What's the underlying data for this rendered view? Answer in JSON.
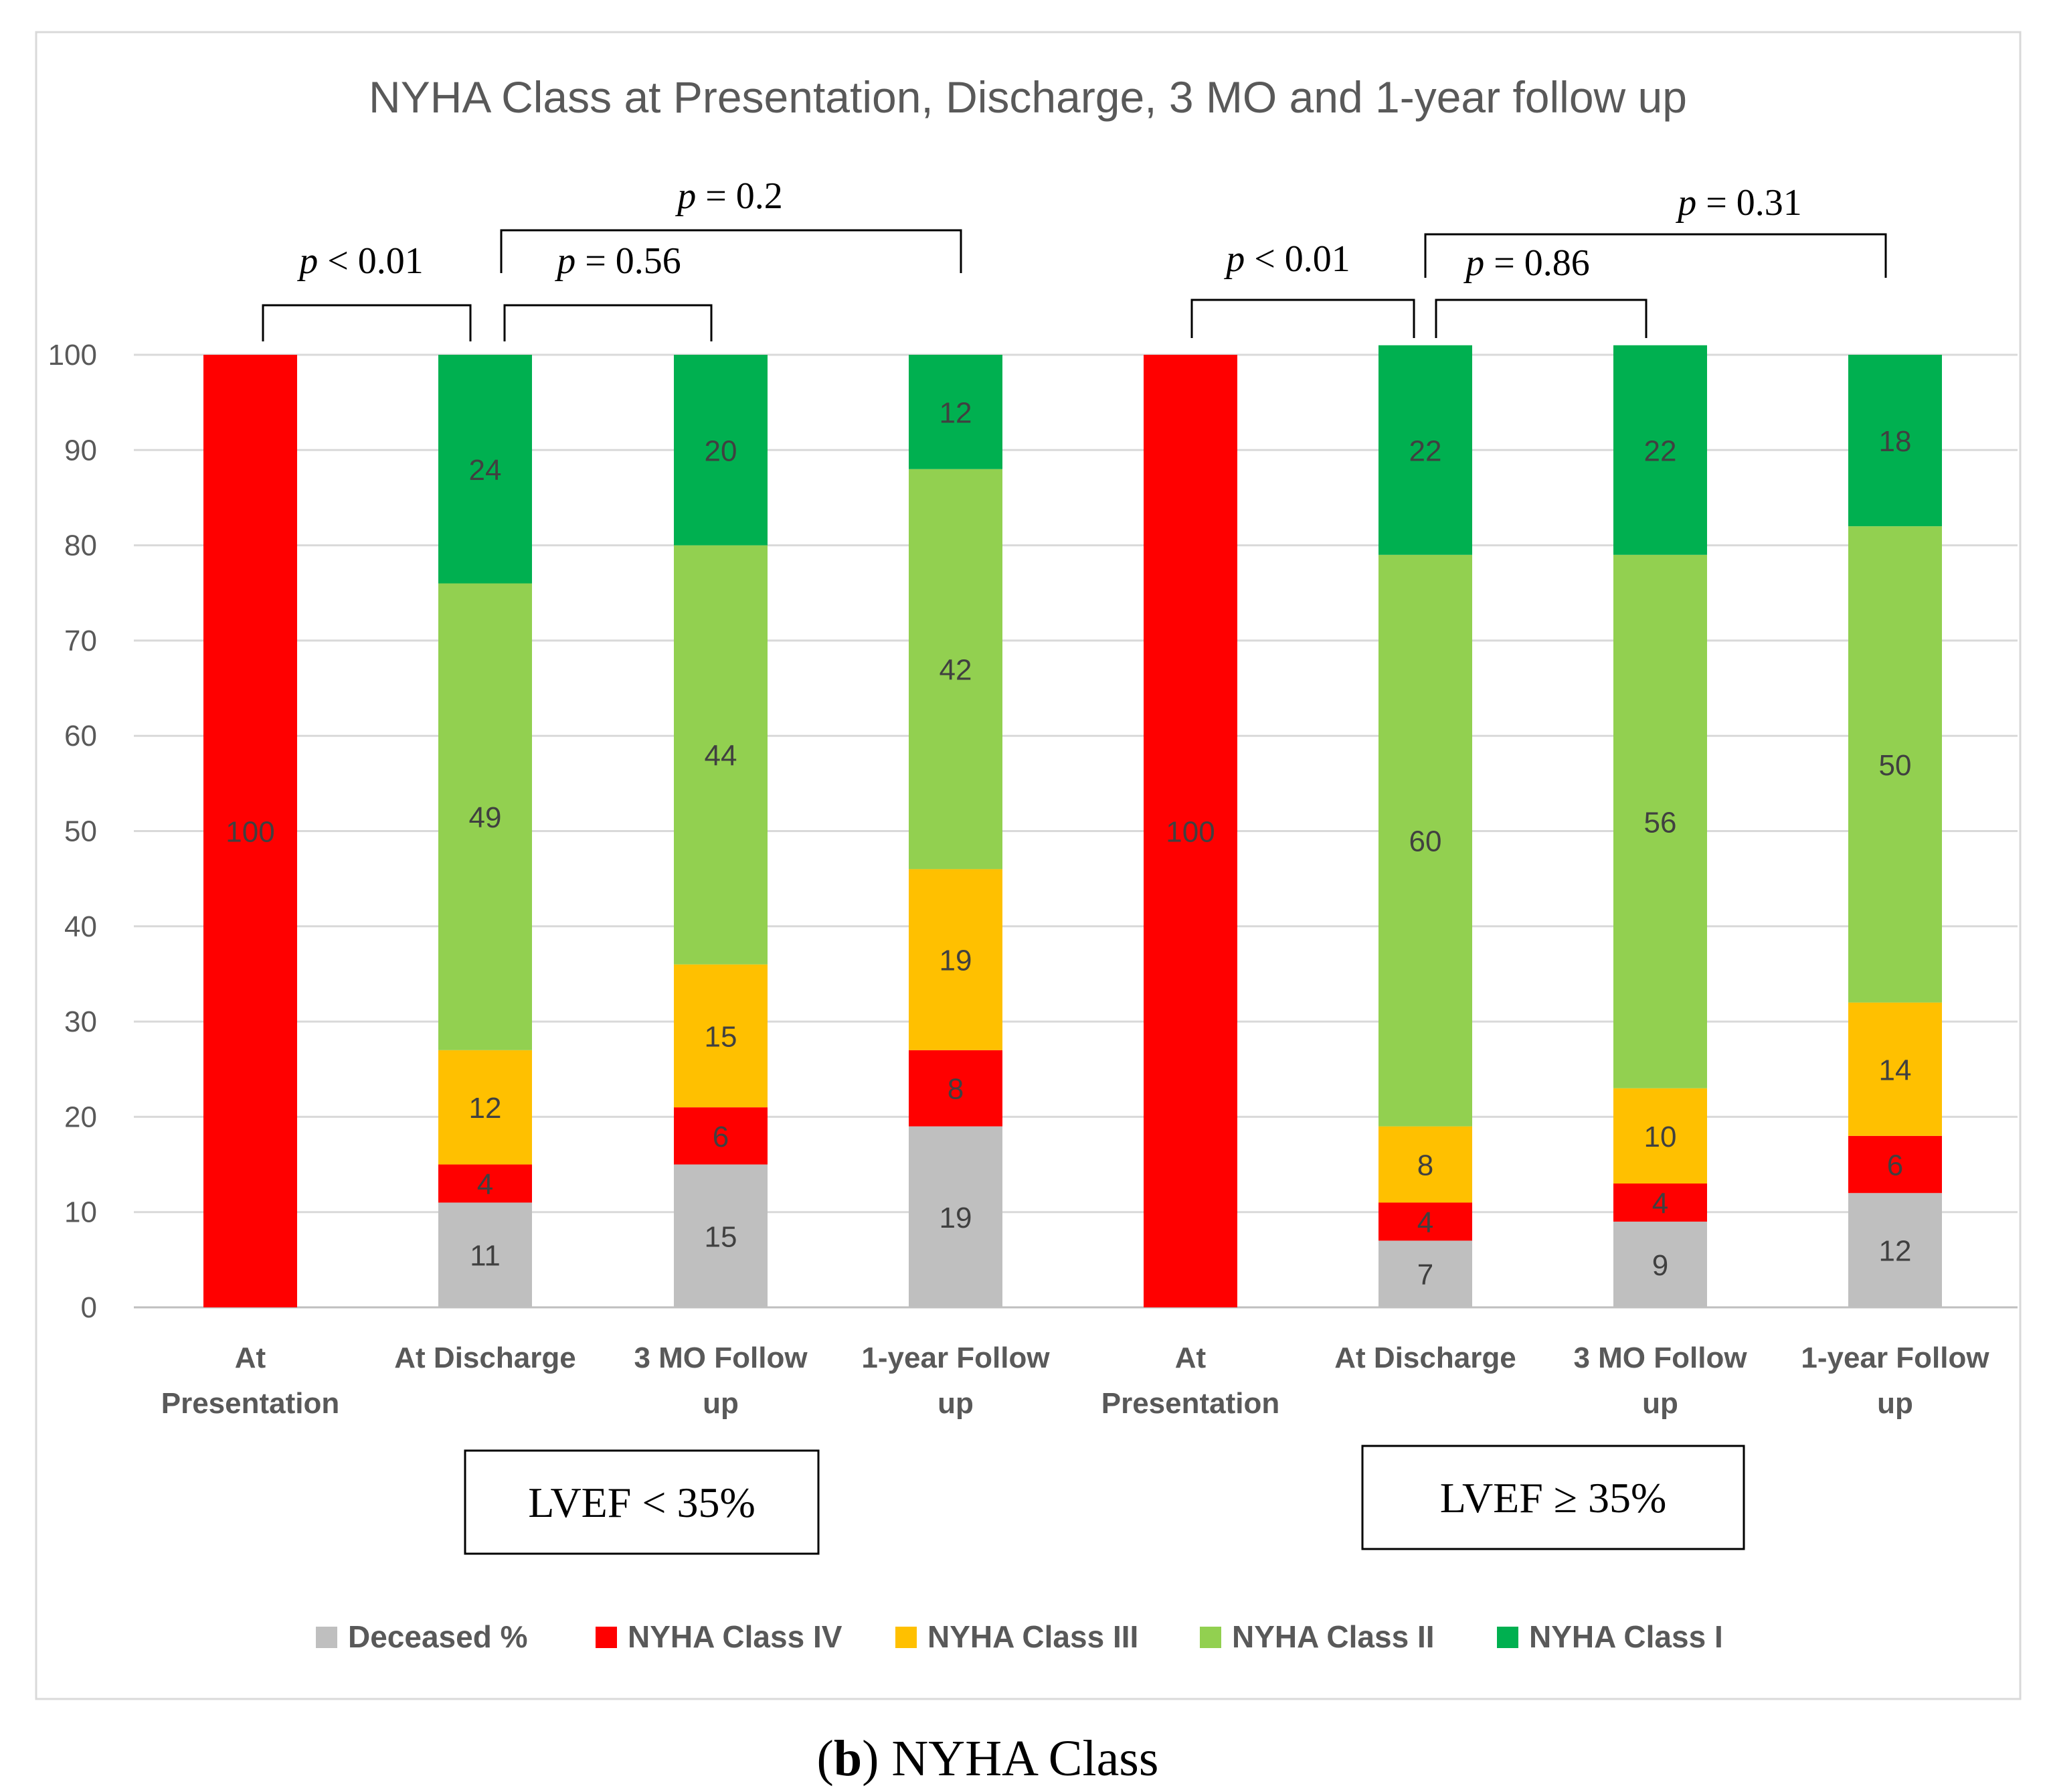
{
  "chart_data": {
    "type": "bar",
    "stacked": true,
    "title": "NYHA Class at Presentation, Discharge, 3 MO and 1-year follow up",
    "caption_prefix": "b",
    "caption_text": " NYHA Class",
    "ylim": [
      0,
      100
    ],
    "y_ticks": [
      0,
      10,
      20,
      30,
      40,
      50,
      60,
      70,
      80,
      90,
      100
    ],
    "grid": true,
    "categories": [
      [
        "At",
        "Presentation"
      ],
      [
        "At Discharge"
      ],
      [
        "3 MO Follow",
        "up"
      ],
      [
        "1-year Follow",
        "up"
      ],
      [
        "At",
        "Presentation"
      ],
      [
        "At Discharge"
      ],
      [
        "3 MO Follow",
        "up"
      ],
      [
        "1-year Follow",
        "up"
      ]
    ],
    "series": [
      {
        "name": "Deceased %",
        "color": "#BFBFBF",
        "values": [
          0,
          11,
          15,
          19,
          0,
          7,
          9,
          12
        ]
      },
      {
        "name": "NYHA Class IV",
        "color": "#FF0000",
        "values": [
          100,
          4,
          6,
          8,
          100,
          4,
          4,
          6
        ]
      },
      {
        "name": "NYHA Class III",
        "color": "#FFC000",
        "values": [
          0,
          12,
          15,
          19,
          0,
          8,
          10,
          14
        ]
      },
      {
        "name": "NYHA Class II",
        "color": "#92D050",
        "values": [
          0,
          49,
          44,
          42,
          0,
          60,
          56,
          50
        ]
      },
      {
        "name": "NYHA Class I",
        "color": "#00B050",
        "values": [
          0,
          24,
          20,
          12,
          0,
          22,
          22,
          18
        ]
      }
    ],
    "groups": [
      {
        "label": "LVEF < 35%",
        "categories": [
          0,
          1,
          2,
          3
        ]
      },
      {
        "label": "LVEF ≥ 35%",
        "categories": [
          4,
          5,
          6,
          7
        ]
      }
    ],
    "comparisons": [
      {
        "from": 0,
        "to": 1,
        "label": "< 0.01"
      },
      {
        "from": 1,
        "to": 2,
        "label": "= 0.56"
      },
      {
        "from": 1,
        "to": 3,
        "label": "= 0.2"
      },
      {
        "from": 4,
        "to": 5,
        "label": "< 0.01"
      },
      {
        "from": 5,
        "to": 6,
        "label": "= 0.86"
      },
      {
        "from": 5,
        "to": 7,
        "label": "= 0.31"
      }
    ]
  }
}
